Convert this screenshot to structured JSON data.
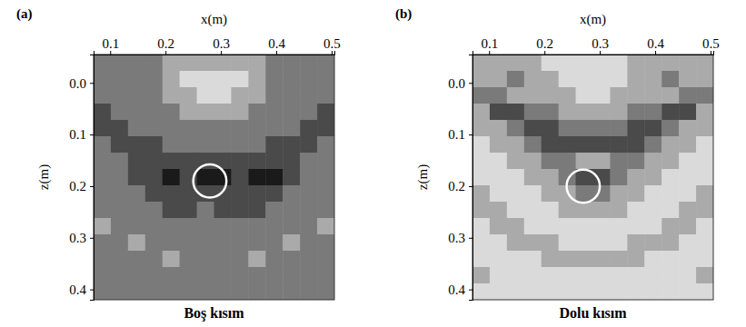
{
  "chart_data": [
    {
      "type": "heatmap",
      "label": "(a)",
      "title": "Boş kısım",
      "x_label": "x(m)",
      "y_label": "z(m)",
      "xlim": [
        0.07,
        0.505
      ],
      "ylim": [
        -0.055,
        0.42
      ],
      "xticks": [
        0.1,
        0.2,
        0.3,
        0.4,
        0.5
      ],
      "yticks": [
        {
          "value": 0,
          "label": "0.0"
        },
        0.1,
        0.2,
        0.3,
        0.4
      ],
      "clim": [
        1,
        5
      ],
      "cells": [
        [
          3,
          3,
          3,
          3,
          4,
          4,
          4,
          4,
          4,
          4,
          3,
          3,
          3,
          3
        ],
        [
          3,
          3,
          3,
          3,
          4,
          5,
          5,
          5,
          5,
          4,
          3,
          3,
          3,
          3
        ],
        [
          3,
          3,
          3,
          3,
          4,
          4,
          5,
          5,
          4,
          4,
          3,
          3,
          3,
          3
        ],
        [
          2,
          3,
          3,
          3,
          3,
          4,
          4,
          4,
          4,
          3,
          3,
          3,
          3,
          2
        ],
        [
          2,
          2,
          3,
          3,
          3,
          3,
          3,
          3,
          3,
          3,
          3,
          3,
          2,
          2
        ],
        [
          3,
          2,
          2,
          2,
          3,
          3,
          3,
          3,
          3,
          3,
          2,
          2,
          2,
          3
        ],
        [
          3,
          3,
          2,
          2,
          2,
          2,
          2,
          2,
          2,
          2,
          2,
          2,
          3,
          3
        ],
        [
          3,
          3,
          2,
          2,
          1,
          2,
          1,
          1,
          2,
          1,
          1,
          2,
          3,
          3
        ],
        [
          3,
          3,
          3,
          2,
          2,
          2,
          2,
          2,
          2,
          2,
          2,
          3,
          3,
          3
        ],
        [
          3,
          3,
          3,
          3,
          2,
          2,
          3,
          2,
          2,
          2,
          3,
          3,
          3,
          3
        ],
        [
          4,
          3,
          3,
          3,
          3,
          3,
          3,
          3,
          3,
          3,
          3,
          3,
          3,
          4
        ],
        [
          3,
          3,
          4,
          3,
          3,
          3,
          3,
          3,
          3,
          3,
          3,
          4,
          3,
          3
        ],
        [
          3,
          3,
          3,
          3,
          4,
          3,
          3,
          3,
          3,
          4,
          3,
          3,
          3,
          3
        ],
        [
          3,
          3,
          3,
          3,
          3,
          3,
          3,
          3,
          3,
          3,
          3,
          3,
          3,
          3
        ],
        [
          3,
          3,
          3,
          3,
          3,
          3,
          3,
          3,
          3,
          3,
          3,
          3,
          3,
          3
        ]
      ],
      "circles": [
        {
          "x": 0.28,
          "y": 0.19,
          "r": 0.03
        }
      ]
    },
    {
      "type": "heatmap",
      "label": "(b)",
      "title": "Dolu kısım",
      "x_label": "x(m)",
      "y_label": "z(m)",
      "xlim": [
        0.07,
        0.505
      ],
      "ylim": [
        -0.055,
        0.42
      ],
      "xticks": [
        0.1,
        0.2,
        0.3,
        0.4,
        0.5
      ],
      "yticks": [
        {
          "value": 0,
          "label": "0.0"
        },
        0.1,
        0.2,
        0.3,
        0.4
      ],
      "clim": [
        1,
        5
      ],
      "cells": [
        [
          4,
          4,
          4,
          4,
          5,
          5,
          5,
          5,
          5,
          4,
          4,
          4,
          4,
          4
        ],
        [
          4,
          4,
          3,
          4,
          4,
          5,
          5,
          5,
          5,
          4,
          4,
          3,
          4,
          4
        ],
        [
          3,
          3,
          4,
          4,
          4,
          4,
          5,
          5,
          4,
          4,
          4,
          4,
          3,
          3
        ],
        [
          4,
          2,
          2,
          3,
          3,
          4,
          4,
          4,
          4,
          3,
          3,
          2,
          2,
          4
        ],
        [
          4,
          4,
          3,
          2,
          2,
          3,
          3,
          3,
          3,
          2,
          2,
          3,
          4,
          4
        ],
        [
          5,
          4,
          4,
          3,
          2,
          2,
          2,
          2,
          2,
          2,
          3,
          4,
          4,
          5
        ],
        [
          5,
          5,
          4,
          4,
          3,
          3,
          4,
          4,
          3,
          3,
          4,
          4,
          5,
          5
        ],
        [
          5,
          5,
          5,
          4,
          4,
          3,
          2,
          2,
          3,
          4,
          4,
          5,
          5,
          5
        ],
        [
          4,
          5,
          5,
          5,
          4,
          4,
          3,
          3,
          4,
          4,
          5,
          5,
          5,
          4
        ],
        [
          4,
          4,
          5,
          5,
          5,
          4,
          4,
          4,
          4,
          5,
          5,
          5,
          4,
          4
        ],
        [
          5,
          4,
          4,
          5,
          5,
          5,
          5,
          5,
          5,
          5,
          5,
          4,
          4,
          5
        ],
        [
          5,
          5,
          4,
          4,
          4,
          5,
          5,
          5,
          5,
          4,
          4,
          4,
          5,
          5
        ],
        [
          5,
          5,
          5,
          5,
          4,
          4,
          4,
          4,
          4,
          4,
          5,
          5,
          5,
          5
        ],
        [
          4,
          5,
          5,
          5,
          5,
          5,
          5,
          5,
          5,
          5,
          5,
          5,
          5,
          4
        ],
        [
          5,
          5,
          5,
          5,
          5,
          5,
          5,
          5,
          5,
          5,
          5,
          5,
          5,
          5
        ]
      ],
      "circles": [
        {
          "x": 0.27,
          "y": 0.2,
          "r": 0.03
        }
      ]
    }
  ]
}
